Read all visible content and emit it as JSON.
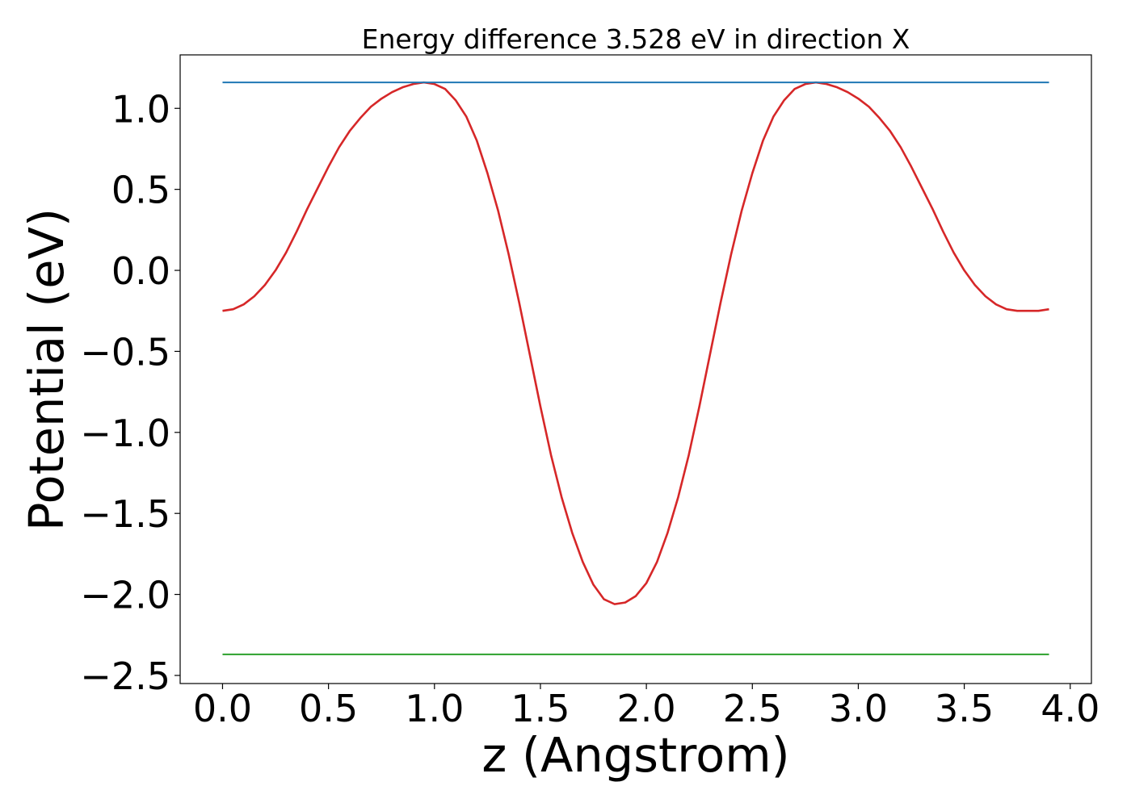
{
  "chart_data": {
    "type": "line",
    "title": "Energy difference 3.528 eV in direction X",
    "xlabel": "z (Angstrom)",
    "ylabel": "Potential (eV)",
    "xlim": [
      -0.2,
      4.1
    ],
    "ylim": [
      -2.55,
      1.33
    ],
    "xticks": [
      0.0,
      0.5,
      1.0,
      1.5,
      2.0,
      2.5,
      3.0,
      3.5,
      4.0
    ],
    "xtick_labels": [
      "0.0",
      "0.5",
      "1.0",
      "1.5",
      "2.0",
      "2.5",
      "3.0",
      "3.5",
      "4.0"
    ],
    "yticks": [
      1.0,
      0.5,
      0.0,
      -0.5,
      -1.0,
      -1.5,
      -2.0,
      -2.5
    ],
    "ytick_labels": [
      "1.0",
      "0.5",
      "0.0",
      "−0.5",
      "−1.0",
      "−1.5",
      "−2.0",
      "−2.5"
    ],
    "grid": false,
    "series": [
      {
        "color": "#d62728",
        "x": [
          0.0,
          0.05,
          0.1,
          0.15,
          0.2,
          0.25,
          0.3,
          0.35,
          0.4,
          0.45,
          0.5,
          0.55,
          0.6,
          0.65,
          0.7,
          0.75,
          0.8,
          0.85,
          0.9,
          0.95,
          1.0,
          1.05,
          1.1,
          1.15,
          1.2,
          1.25,
          1.3,
          1.35,
          1.4,
          1.45,
          1.5,
          1.55,
          1.6,
          1.65,
          1.7,
          1.75,
          1.8,
          1.85,
          1.9,
          1.95,
          2.0,
          2.05,
          2.1,
          2.15,
          2.2,
          2.25,
          2.3,
          2.35,
          2.4,
          2.45,
          2.5,
          2.55,
          2.6,
          2.65,
          2.7,
          2.75,
          2.8,
          2.85,
          2.9,
          2.95,
          3.0,
          3.05,
          3.1,
          3.15,
          3.2,
          3.25,
          3.3,
          3.35,
          3.4,
          3.45,
          3.5,
          3.55,
          3.6,
          3.65,
          3.7,
          3.75,
          3.8,
          3.85,
          3.9
        ],
        "y": [
          -0.25,
          -0.24,
          -0.21,
          -0.16,
          -0.09,
          0.0,
          0.11,
          0.24,
          0.38,
          0.51,
          0.64,
          0.76,
          0.86,
          0.94,
          1.01,
          1.06,
          1.1,
          1.13,
          1.15,
          1.16,
          1.15,
          1.12,
          1.05,
          0.95,
          0.8,
          0.6,
          0.37,
          0.1,
          -0.2,
          -0.52,
          -0.84,
          -1.14,
          -1.4,
          -1.62,
          -1.8,
          -1.94,
          -2.03,
          -2.06,
          -2.05,
          -2.01,
          -1.93,
          -1.8,
          -1.62,
          -1.4,
          -1.14,
          -0.84,
          -0.52,
          -0.2,
          0.1,
          0.37,
          0.6,
          0.8,
          0.95,
          1.05,
          1.12,
          1.15,
          1.16,
          1.15,
          1.13,
          1.1,
          1.06,
          1.01,
          0.94,
          0.86,
          0.76,
          0.64,
          0.51,
          0.38,
          0.24,
          0.11,
          0.0,
          -0.09,
          -0.16,
          -0.21,
          -0.24,
          -0.25,
          -0.25,
          -0.25,
          -0.24
        ]
      },
      {
        "color": "#1f77b4",
        "x": [
          0.0,
          3.9
        ],
        "y": [
          1.16,
          1.16
        ]
      },
      {
        "color": "#2ca02c",
        "x": [
          0.0,
          3.9
        ],
        "y": [
          -2.37,
          -2.37
        ]
      }
    ]
  }
}
